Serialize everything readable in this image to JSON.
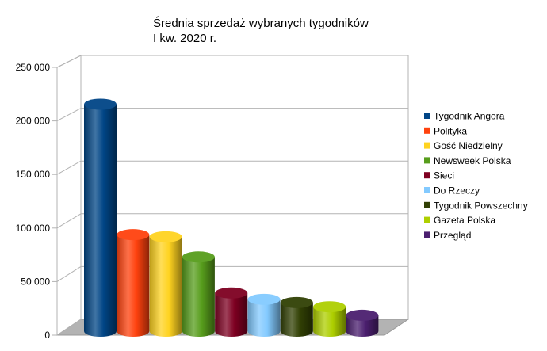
{
  "chart_data": {
    "type": "bar",
    "title": "Średnia sprzedaż wybranych tygodników",
    "subtitle": "I kw. 2020 r.",
    "xlabel": "",
    "ylabel": "",
    "ylim": [
      0,
      250000
    ],
    "yticks": [
      0,
      50000,
      100000,
      150000,
      200000,
      250000
    ],
    "ytick_labels": [
      "0",
      "50 000",
      "100 000",
      "150 000",
      "200 000",
      "250 000"
    ],
    "grid": true,
    "legend_position": "right",
    "series": [
      {
        "name": "Tygodnik Angora",
        "value": 214000,
        "color": "#004586"
      },
      {
        "name": "Polityka",
        "value": 91000,
        "color": "#ff420e"
      },
      {
        "name": "Gość Niedzielny",
        "value": 89000,
        "color": "#ffd320"
      },
      {
        "name": "Newsweek Polska",
        "value": 70000,
        "color": "#579d1c"
      },
      {
        "name": "Sieci",
        "value": 36000,
        "color": "#7e0021"
      },
      {
        "name": "Do Rzeczy",
        "value": 30000,
        "color": "#83caff"
      },
      {
        "name": "Tygodnik Powszechny",
        "value": 27000,
        "color": "#314004"
      },
      {
        "name": "Gazeta Polska",
        "value": 23000,
        "color": "#aecf00"
      },
      {
        "name": "Przegląd",
        "value": 15000,
        "color": "#4b1f6f"
      }
    ]
  }
}
